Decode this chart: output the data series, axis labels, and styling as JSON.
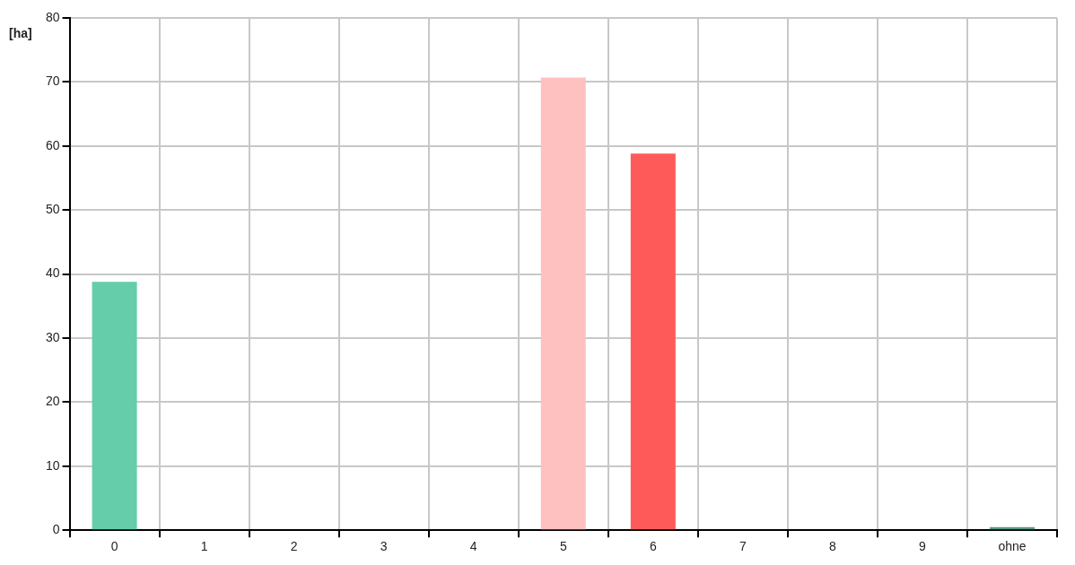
{
  "chart_data": {
    "type": "bar",
    "ylabel": "[ha]",
    "categories": [
      "0",
      "1",
      "2",
      "3",
      "4",
      "5",
      "6",
      "7",
      "8",
      "9",
      "ohne"
    ],
    "values": [
      38.8,
      0,
      0,
      0,
      0,
      70.7,
      58.8,
      0,
      0,
      0,
      0.5
    ],
    "colors": [
      "#66cdaa",
      "#66cdaa",
      "#66cdaa",
      "#66cdaa",
      "#66cdaa",
      "#ffc0c0",
      "#ff5a5a",
      "#66cdaa",
      "#66cdaa",
      "#66cdaa",
      "#5a9a80"
    ],
    "ylim": [
      0,
      80
    ],
    "yticks": [
      0,
      10,
      20,
      30,
      40,
      50,
      60,
      70,
      80
    ],
    "grid": true,
    "legend": false
  }
}
